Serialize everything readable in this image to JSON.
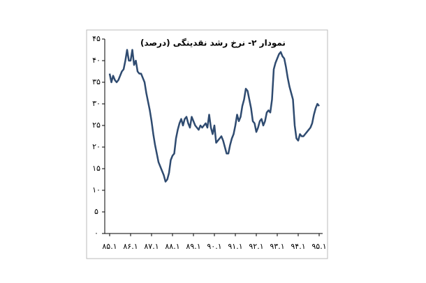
{
  "chart_data": {
    "type": "line",
    "title": "نمودار ۲- نرخ رشد نقدینگی (درصد)",
    "categories": [
      "۸۵.۱",
      null,
      null,
      null,
      null,
      null,
      null,
      null,
      null,
      null,
      null,
      null,
      "۸۶.۱",
      null,
      null,
      null,
      null,
      null,
      null,
      null,
      null,
      null,
      null,
      null,
      "۸۷.۱",
      null,
      null,
      null,
      null,
      null,
      null,
      null,
      null,
      null,
      null,
      null,
      "۸۸.۱",
      null,
      null,
      null,
      null,
      null,
      null,
      null,
      null,
      null,
      null,
      null,
      "۸۹.۱",
      null,
      null,
      null,
      null,
      null,
      null,
      null,
      null,
      null,
      null,
      null,
      "۹۰.۱",
      null,
      null,
      null,
      null,
      null,
      null,
      null,
      null,
      null,
      null,
      null,
      "۹۱.۱",
      null,
      null,
      null,
      null,
      null,
      null,
      null,
      null,
      null,
      null,
      null,
      "۹۲.۱",
      null,
      null,
      null,
      null,
      null,
      null,
      null,
      null,
      null,
      null,
      null,
      "۹۳.۱",
      null,
      null,
      null,
      null,
      null,
      null,
      null,
      null,
      null,
      null,
      null,
      "۹۴.۱",
      null,
      null,
      null,
      null,
      null,
      null,
      null,
      null,
      null,
      null,
      null,
      "۹۵.۱"
    ],
    "values": [
      37,
      35,
      36.5,
      35.5,
      35,
      35.5,
      36.5,
      37.5,
      38,
      40,
      42.5,
      40,
      40,
      42.5,
      39,
      40,
      37.5,
      37,
      37,
      36,
      35,
      32.5,
      30.5,
      28.5,
      26,
      23,
      20.5,
      18.5,
      16.5,
      15.5,
      14.5,
      13.5,
      12,
      12.5,
      14,
      17,
      18,
      18.5,
      22,
      24,
      25.5,
      26.5,
      25,
      26.5,
      27,
      25.5,
      24.5,
      27,
      26,
      25,
      24.5,
      24,
      25,
      24.5,
      25,
      25.5,
      24.5,
      27.5,
      24.5,
      23,
      25,
      21,
      21.5,
      22,
      22.5,
      21.5,
      20,
      18.5,
      18.5,
      20.5,
      22,
      23,
      25,
      27.5,
      26,
      27,
      29.5,
      31,
      33.5,
      33,
      31,
      29,
      26,
      25.5,
      23.5,
      24.5,
      26,
      26.5,
      25,
      26,
      28,
      28.5,
      28,
      31,
      38,
      39.5,
      40.5,
      41.5,
      42,
      41,
      40.5,
      38.5,
      36,
      34,
      32.5,
      31,
      25,
      22,
      21.5,
      23,
      22.5,
      22.5,
      23,
      23.5,
      24,
      24.5,
      25.5,
      27.5,
      29,
      30,
      29.5
    ],
    "color": "#2f4b70",
    "ylim": [
      0,
      45
    ],
    "yticks": [
      {
        "value": 0,
        "label": "۰"
      },
      {
        "value": 5,
        "label": "۵"
      },
      {
        "value": 10,
        "label": "۱۰"
      },
      {
        "value": 15,
        "label": "۱۵"
      },
      {
        "value": 20,
        "label": "۲۰"
      },
      {
        "value": 25,
        "label": "۲۵"
      },
      {
        "value": 30,
        "label": "۳۰"
      },
      {
        "value": 35,
        "label": "۳۵"
      },
      {
        "value": 40,
        "label": "۴۰"
      },
      {
        "value": 45,
        "label": "۴۵"
      }
    ]
  }
}
